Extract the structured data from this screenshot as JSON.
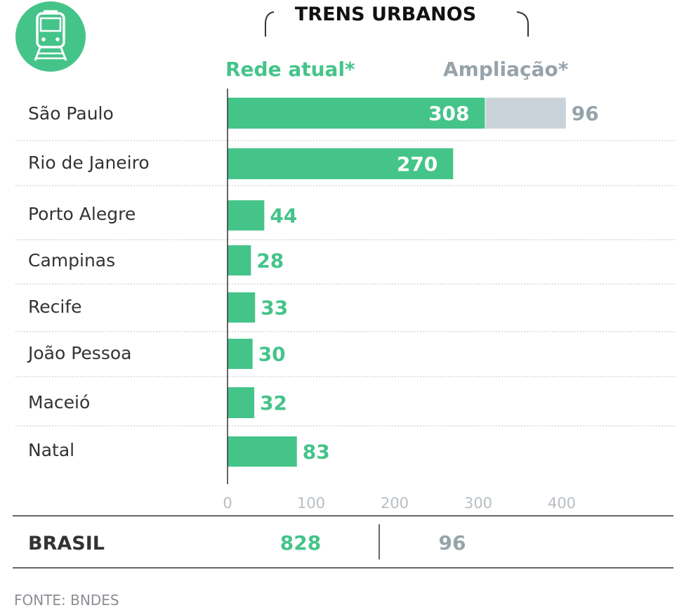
{
  "colors": {
    "current": "#45c48a",
    "expansion": "#c9d3d9",
    "expansion_text": "#96a3ab",
    "icon_bg": "#45c48a"
  },
  "icon": "train-icon",
  "chart_data": {
    "type": "bar",
    "orientation": "horizontal",
    "stacked": true,
    "title": "TRENS URBANOS",
    "categories": [
      "São Paulo",
      "Rio de Janeiro",
      "Porto Alegre",
      "Campinas",
      "Recife",
      "João Pessoa",
      "Maceió",
      "Natal"
    ],
    "series": [
      {
        "name": "Rede atual*",
        "values": [
          308,
          270,
          44,
          28,
          33,
          30,
          32,
          83
        ]
      },
      {
        "name": "Ampliação*",
        "values": [
          96,
          null,
          null,
          null,
          null,
          null,
          null,
          null
        ]
      }
    ],
    "xlim": [
      0,
      400
    ],
    "xticks": [
      "0",
      "100",
      "200",
      "300",
      "400"
    ],
    "legend_position": "top",
    "grid": false
  },
  "totals": {
    "label": "BRASIL",
    "current": "828",
    "expansion": "96"
  },
  "source": "FONTE: BNDES"
}
